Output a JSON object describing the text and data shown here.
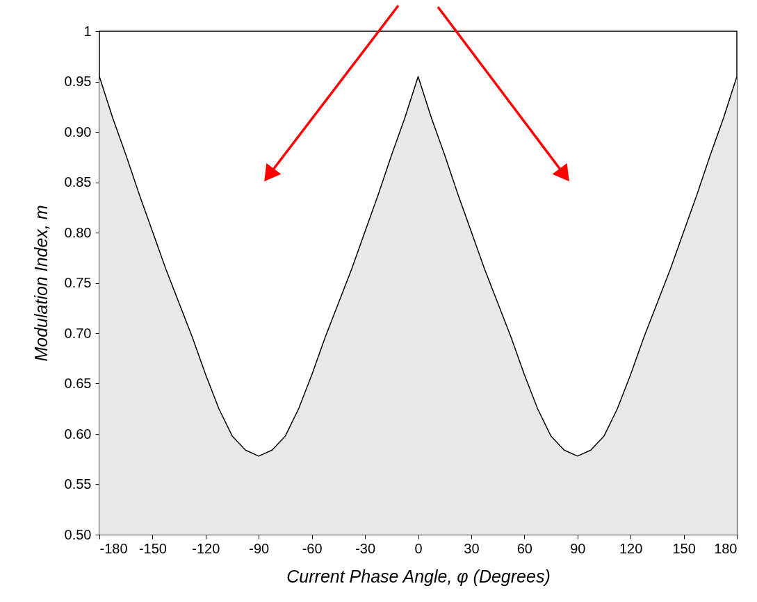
{
  "chart_data": {
    "type": "area",
    "xlabel": "Current Phase Angle, φ (Degrees)",
    "ylabel": "Modulation Index, m",
    "x": [
      -180,
      -172.5,
      -165,
      -157.5,
      -150,
      -142.5,
      -135,
      -127.5,
      -120,
      -112.5,
      -105,
      -97.5,
      -90,
      -82.5,
      -75,
      -67.5,
      -60,
      -52.5,
      -45,
      -37.5,
      -30,
      -22.5,
      -15,
      -7.5,
      0,
      7.5,
      15,
      22.5,
      30,
      37.5,
      45,
      52.5,
      60,
      67.5,
      75,
      82.5,
      90,
      97.5,
      105,
      112.5,
      120,
      127.5,
      135,
      142.5,
      150,
      157.5,
      165,
      172.5,
      180
    ],
    "series": [
      {
        "color": "#e8e8e8",
        "values": [
          0.955,
          0.914,
          0.877,
          0.838,
          0.801,
          0.764,
          0.73,
          0.696,
          0.659,
          0.625,
          0.598,
          0.584,
          0.578,
          0.584,
          0.598,
          0.625,
          0.659,
          0.696,
          0.73,
          0.764,
          0.801,
          0.838,
          0.877,
          0.914,
          0.955,
          0.914,
          0.877,
          0.838,
          0.801,
          0.764,
          0.73,
          0.696,
          0.659,
          0.625,
          0.598,
          0.584,
          0.578,
          0.584,
          0.598,
          0.625,
          0.659,
          0.696,
          0.73,
          0.764,
          0.801,
          0.838,
          0.877,
          0.914,
          0.955
        ]
      }
    ],
    "xlim": [
      -180,
      180
    ],
    "xticks": [
      -180,
      -150,
      -120,
      -90,
      -60,
      -30,
      0,
      30,
      60,
      90,
      120,
      150,
      180
    ],
    "ylim": [
      0.5,
      1
    ],
    "yticks": [
      {
        "value": 0.5,
        "label": "0.50"
      },
      0.55,
      {
        "value": 0.6,
        "label": "0.60"
      },
      0.65,
      {
        "value": 0.7,
        "label": "0.70"
      },
      0.75,
      {
        "value": 0.8,
        "label": "0.80"
      },
      0.85,
      {
        "value": 0.9,
        "label": "0.90"
      },
      0.95,
      1
    ],
    "grid": false
  }
}
